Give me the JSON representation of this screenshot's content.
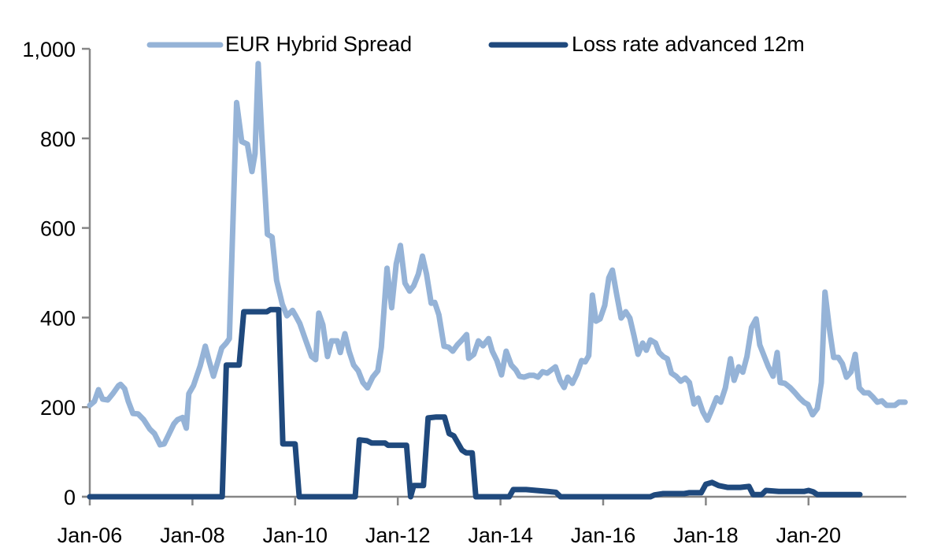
{
  "chart_data": {
    "type": "line",
    "title": "",
    "xlabel": "",
    "ylabel": "",
    "ylim": [
      0,
      1000
    ],
    "xlim": [
      2006.0,
      2022.0
    ],
    "y_ticks": [
      "0",
      "200",
      "400",
      "600",
      "800",
      "1,000"
    ],
    "y_tick_values": [
      0,
      200,
      400,
      600,
      800,
      1000
    ],
    "x_ticks": [
      "Jan-06",
      "Jan-08",
      "Jan-10",
      "Jan-12",
      "Jan-14",
      "Jan-16",
      "Jan-18",
      "Jan-20"
    ],
    "x_tick_values": [
      2006,
      2008,
      2010,
      2012,
      2014,
      2016,
      2018,
      2020
    ],
    "grid": false,
    "legend_position": "top",
    "series": [
      {
        "name": "EUR Hybrid Spread",
        "color": "#95B3D7",
        "points": [
          [
            2006.0,
            204
          ],
          [
            2006.09,
            213
          ],
          [
            2006.17,
            239
          ],
          [
            2006.25,
            218
          ],
          [
            2006.35,
            216
          ],
          [
            2006.45,
            230
          ],
          [
            2006.56,
            248
          ],
          [
            2006.6,
            251
          ],
          [
            2006.68,
            241
          ],
          [
            2006.75,
            213
          ],
          [
            2006.84,
            186
          ],
          [
            2006.94,
            185
          ],
          [
            2007.05,
            172
          ],
          [
            2007.17,
            151
          ],
          [
            2007.26,
            141
          ],
          [
            2007.37,
            116
          ],
          [
            2007.45,
            118
          ],
          [
            2007.53,
            137
          ],
          [
            2007.64,
            163
          ],
          [
            2007.71,
            172
          ],
          [
            2007.81,
            177
          ],
          [
            2007.88,
            153
          ],
          [
            2007.93,
            230
          ],
          [
            2008.02,
            248
          ],
          [
            2008.15,
            292
          ],
          [
            2008.25,
            336
          ],
          [
            2008.33,
            301
          ],
          [
            2008.41,
            269
          ],
          [
            2008.5,
            304
          ],
          [
            2008.57,
            332
          ],
          [
            2008.66,
            343
          ],
          [
            2008.72,
            353
          ],
          [
            2008.86,
            880
          ],
          [
            2008.96,
            793
          ],
          [
            2009.07,
            787
          ],
          [
            2009.16,
            726
          ],
          [
            2009.22,
            766
          ],
          [
            2009.28,
            967
          ],
          [
            2009.35,
            808
          ],
          [
            2009.46,
            586
          ],
          [
            2009.55,
            580
          ],
          [
            2009.64,
            483
          ],
          [
            2009.75,
            430
          ],
          [
            2009.84,
            404
          ],
          [
            2009.95,
            416
          ],
          [
            2010.01,
            404
          ],
          [
            2010.09,
            387
          ],
          [
            2010.21,
            348
          ],
          [
            2010.32,
            313
          ],
          [
            2010.4,
            306
          ],
          [
            2010.46,
            410
          ],
          [
            2010.54,
            384
          ],
          [
            2010.63,
            313
          ],
          [
            2010.71,
            348
          ],
          [
            2010.82,
            348
          ],
          [
            2010.88,
            322
          ],
          [
            2010.97,
            364
          ],
          [
            2011.05,
            325
          ],
          [
            2011.14,
            294
          ],
          [
            2011.23,
            281
          ],
          [
            2011.32,
            255
          ],
          [
            2011.41,
            243
          ],
          [
            2011.51,
            267
          ],
          [
            2011.61,
            281
          ],
          [
            2011.68,
            334
          ],
          [
            2011.79,
            510
          ],
          [
            2011.88,
            422
          ],
          [
            2011.97,
            520
          ],
          [
            2012.05,
            561
          ],
          [
            2012.14,
            477
          ],
          [
            2012.23,
            459
          ],
          [
            2012.31,
            471
          ],
          [
            2012.4,
            497
          ],
          [
            2012.48,
            537
          ],
          [
            2012.56,
            497
          ],
          [
            2012.65,
            432
          ],
          [
            2012.72,
            434
          ],
          [
            2012.8,
            406
          ],
          [
            2012.9,
            336
          ],
          [
            2012.99,
            334
          ],
          [
            2013.07,
            325
          ],
          [
            2013.16,
            339
          ],
          [
            2013.25,
            350
          ],
          [
            2013.34,
            362
          ],
          [
            2013.38,
            309
          ],
          [
            2013.48,
            318
          ],
          [
            2013.57,
            348
          ],
          [
            2013.66,
            337
          ],
          [
            2013.77,
            353
          ],
          [
            2013.84,
            325
          ],
          [
            2013.93,
            304
          ],
          [
            2014.02,
            272
          ],
          [
            2014.11,
            325
          ],
          [
            2014.21,
            294
          ],
          [
            2014.3,
            283
          ],
          [
            2014.37,
            269
          ],
          [
            2014.46,
            267
          ],
          [
            2014.56,
            271
          ],
          [
            2014.65,
            271
          ],
          [
            2014.73,
            267
          ],
          [
            2014.82,
            279
          ],
          [
            2014.91,
            276
          ],
          [
            2014.99,
            283
          ],
          [
            2015.07,
            290
          ],
          [
            2015.16,
            260
          ],
          [
            2015.24,
            244
          ],
          [
            2015.31,
            267
          ],
          [
            2015.4,
            253
          ],
          [
            2015.49,
            274
          ],
          [
            2015.58,
            304
          ],
          [
            2015.65,
            301
          ],
          [
            2015.72,
            315
          ],
          [
            2015.79,
            450
          ],
          [
            2015.86,
            392
          ],
          [
            2015.94,
            397
          ],
          [
            2016.03,
            427
          ],
          [
            2016.11,
            489
          ],
          [
            2016.18,
            506
          ],
          [
            2016.26,
            453
          ],
          [
            2016.35,
            399
          ],
          [
            2016.44,
            413
          ],
          [
            2016.52,
            399
          ],
          [
            2016.6,
            360
          ],
          [
            2016.68,
            318
          ],
          [
            2016.77,
            343
          ],
          [
            2016.84,
            327
          ],
          [
            2016.92,
            350
          ],
          [
            2017.02,
            343
          ],
          [
            2017.09,
            322
          ],
          [
            2017.17,
            313
          ],
          [
            2017.25,
            308
          ],
          [
            2017.33,
            276
          ],
          [
            2017.42,
            269
          ],
          [
            2017.51,
            258
          ],
          [
            2017.6,
            265
          ],
          [
            2017.68,
            255
          ],
          [
            2017.77,
            207
          ],
          [
            2017.85,
            220
          ],
          [
            2017.94,
            190
          ],
          [
            2018.03,
            171
          ],
          [
            2018.12,
            195
          ],
          [
            2018.21,
            221
          ],
          [
            2018.29,
            211
          ],
          [
            2018.38,
            243
          ],
          [
            2018.48,
            308
          ],
          [
            2018.55,
            260
          ],
          [
            2018.64,
            290
          ],
          [
            2018.72,
            278
          ],
          [
            2018.8,
            313
          ],
          [
            2018.89,
            378
          ],
          [
            2018.98,
            397
          ],
          [
            2019.05,
            339
          ],
          [
            2019.14,
            313
          ],
          [
            2019.22,
            290
          ],
          [
            2019.31,
            269
          ],
          [
            2019.39,
            322
          ],
          [
            2019.45,
            255
          ],
          [
            2019.54,
            253
          ],
          [
            2019.64,
            244
          ],
          [
            2019.73,
            233
          ],
          [
            2019.82,
            221
          ],
          [
            2019.91,
            211
          ],
          [
            2019.99,
            206
          ],
          [
            2020.08,
            183
          ],
          [
            2020.17,
            197
          ],
          [
            2020.25,
            255
          ],
          [
            2020.32,
            457
          ],
          [
            2020.41,
            373
          ],
          [
            2020.49,
            311
          ],
          [
            2020.58,
            311
          ],
          [
            2020.66,
            297
          ],
          [
            2020.74,
            267
          ],
          [
            2020.83,
            279
          ],
          [
            2020.91,
            318
          ],
          [
            2020.99,
            243
          ],
          [
            2021.08,
            232
          ],
          [
            2021.17,
            232
          ],
          [
            2021.25,
            223
          ],
          [
            2021.34,
            211
          ],
          [
            2021.43,
            214
          ],
          [
            2021.52,
            204
          ],
          [
            2021.61,
            204
          ],
          [
            2021.68,
            204
          ],
          [
            2021.76,
            211
          ],
          [
            2021.88,
            211
          ]
        ]
      },
      {
        "name": "Loss rate advanced 12m",
        "color": "#1F497D",
        "points": [
          [
            2006.0,
            0
          ],
          [
            2008.58,
            0
          ],
          [
            2008.66,
            294
          ],
          [
            2008.91,
            294
          ],
          [
            2009.0,
            413
          ],
          [
            2009.45,
            413
          ],
          [
            2009.52,
            418
          ],
          [
            2009.68,
            418
          ],
          [
            2009.76,
            118
          ],
          [
            2010.0,
            118
          ],
          [
            2010.08,
            0
          ],
          [
            2011.17,
            0
          ],
          [
            2011.25,
            127
          ],
          [
            2011.4,
            125
          ],
          [
            2011.49,
            120
          ],
          [
            2011.75,
            120
          ],
          [
            2011.81,
            115
          ],
          [
            2012.17,
            115
          ],
          [
            2012.25,
            0
          ],
          [
            2012.31,
            25
          ],
          [
            2012.5,
            25
          ],
          [
            2012.59,
            176
          ],
          [
            2012.75,
            178
          ],
          [
            2012.91,
            178
          ],
          [
            2013.0,
            141
          ],
          [
            2013.09,
            136
          ],
          [
            2013.25,
            104
          ],
          [
            2013.33,
            98
          ],
          [
            2013.45,
            98
          ],
          [
            2013.52,
            0
          ],
          [
            2014.17,
            0
          ],
          [
            2014.25,
            16
          ],
          [
            2014.5,
            16
          ],
          [
            2014.92,
            12
          ],
          [
            2015.08,
            10
          ],
          [
            2015.17,
            0
          ],
          [
            2016.92,
            0
          ],
          [
            2017.0,
            4
          ],
          [
            2017.17,
            7
          ],
          [
            2017.58,
            7
          ],
          [
            2017.67,
            9
          ],
          [
            2017.91,
            9
          ],
          [
            2018.0,
            28
          ],
          [
            2018.12,
            32
          ],
          [
            2018.25,
            25
          ],
          [
            2018.42,
            21
          ],
          [
            2018.67,
            21
          ],
          [
            2018.84,
            23
          ],
          [
            2018.92,
            5
          ],
          [
            2019.09,
            5
          ],
          [
            2019.17,
            14
          ],
          [
            2019.42,
            12
          ],
          [
            2019.67,
            12
          ],
          [
            2019.92,
            12
          ],
          [
            2020.0,
            14
          ],
          [
            2020.09,
            11
          ],
          [
            2020.17,
            5
          ],
          [
            2020.5,
            5
          ],
          [
            2021.0,
            5
          ]
        ]
      }
    ]
  }
}
